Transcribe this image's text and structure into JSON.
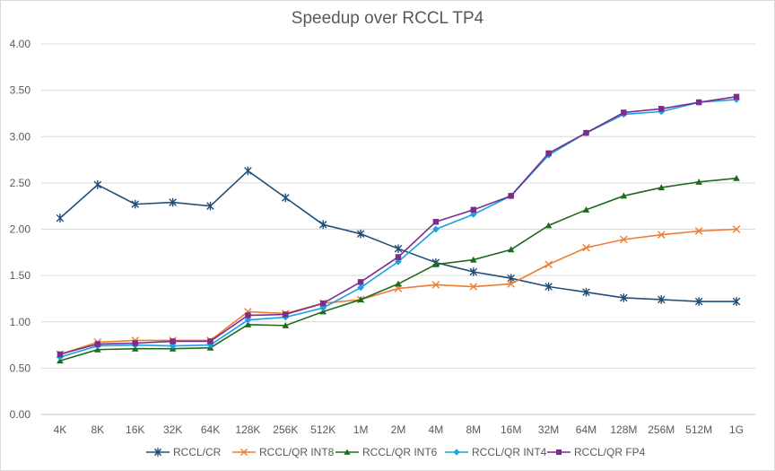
{
  "chart_data": {
    "type": "line",
    "title": "Speedup over RCCL TP4",
    "xlabel": "",
    "ylabel": "",
    "ylim": [
      0,
      4
    ],
    "y_ticks": [
      "0.00",
      "0.50",
      "1.00",
      "1.50",
      "2.00",
      "2.50",
      "3.00",
      "3.50",
      "4.00"
    ],
    "grid": "horizontal",
    "legend_position": "bottom",
    "categories": [
      "4K",
      "8K",
      "16K",
      "32K",
      "64K",
      "128K",
      "256K",
      "512K",
      "1M",
      "2M",
      "4M",
      "8M",
      "16M",
      "32M",
      "64M",
      "128M",
      "256M",
      "512M",
      "1G"
    ],
    "series": [
      {
        "name": "RCCL/CR",
        "color": "#1f4e79",
        "marker": "star",
        "values": [
          2.12,
          2.48,
          2.27,
          2.29,
          2.25,
          2.63,
          2.34,
          2.05,
          1.95,
          1.79,
          1.64,
          1.54,
          1.47,
          1.38,
          1.32,
          1.26,
          1.24,
          1.22,
          1.22
        ]
      },
      {
        "name": "RCCL/QR INT8",
        "color": "#ed7d31",
        "marker": "x",
        "values": [
          0.65,
          0.78,
          0.8,
          0.8,
          0.8,
          1.11,
          1.09,
          1.2,
          1.24,
          1.36,
          1.4,
          1.38,
          1.41,
          1.62,
          1.8,
          1.89,
          1.94,
          1.98,
          2.0
        ]
      },
      {
        "name": "RCCL/QR INT6",
        "color": "#1e6b1e",
        "marker": "triangle",
        "values": [
          0.58,
          0.7,
          0.71,
          0.71,
          0.72,
          0.97,
          0.96,
          1.11,
          1.24,
          1.41,
          1.62,
          1.67,
          1.78,
          2.04,
          2.21,
          2.36,
          2.45,
          2.51,
          2.55
        ]
      },
      {
        "name": "RCCL/QR INT4",
        "color": "#1ba1e2",
        "marker": "diamond",
        "values": [
          0.62,
          0.74,
          0.75,
          0.74,
          0.75,
          1.02,
          1.05,
          1.15,
          1.37,
          1.65,
          2.0,
          2.16,
          2.36,
          2.8,
          3.04,
          3.24,
          3.27,
          3.37,
          3.4
        ]
      },
      {
        "name": "RCCL/QR FP4",
        "color": "#7b2d8e",
        "marker": "square",
        "values": [
          0.65,
          0.76,
          0.77,
          0.79,
          0.79,
          1.07,
          1.08,
          1.2,
          1.43,
          1.7,
          2.08,
          2.21,
          2.36,
          2.82,
          3.04,
          3.26,
          3.3,
          3.37,
          3.43
        ]
      }
    ]
  }
}
